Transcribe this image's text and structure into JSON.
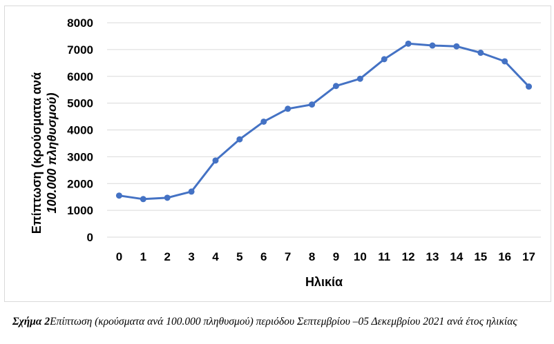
{
  "chart_data": {
    "type": "line",
    "title": "",
    "xlabel": "Ηλικία",
    "ylabel_lines": [
      "Επίπτωση (κρούσματα ανά",
      "100.000 πληθυσμού)"
    ],
    "categories": [
      "0",
      "1",
      "2",
      "3",
      "4",
      "5",
      "6",
      "7",
      "8",
      "9",
      "10",
      "11",
      "12",
      "13",
      "14",
      "15",
      "16",
      "17"
    ],
    "values": [
      1550,
      1420,
      1470,
      1700,
      2860,
      3650,
      4310,
      4790,
      4950,
      5640,
      5910,
      6640,
      7220,
      7150,
      7120,
      6880,
      6560,
      5620
    ],
    "ylim": [
      0,
      8000
    ],
    "yticks": [
      "0",
      "1000",
      "2000",
      "3000",
      "4000",
      "5000",
      "6000",
      "7000",
      "8000"
    ],
    "grid": true,
    "legend": "none",
    "line_color": "#4472c4",
    "grid_color": "#d9d9d9"
  },
  "caption": {
    "label": "Σχήμα 2",
    "text": "Επίπτωση (κρούσματα ανά 100.000 πληθυσμού) περιόδου Σεπτεμβρίου –05 Δεκεμβρίου 2021 ανά έτος ηλικίας"
  }
}
